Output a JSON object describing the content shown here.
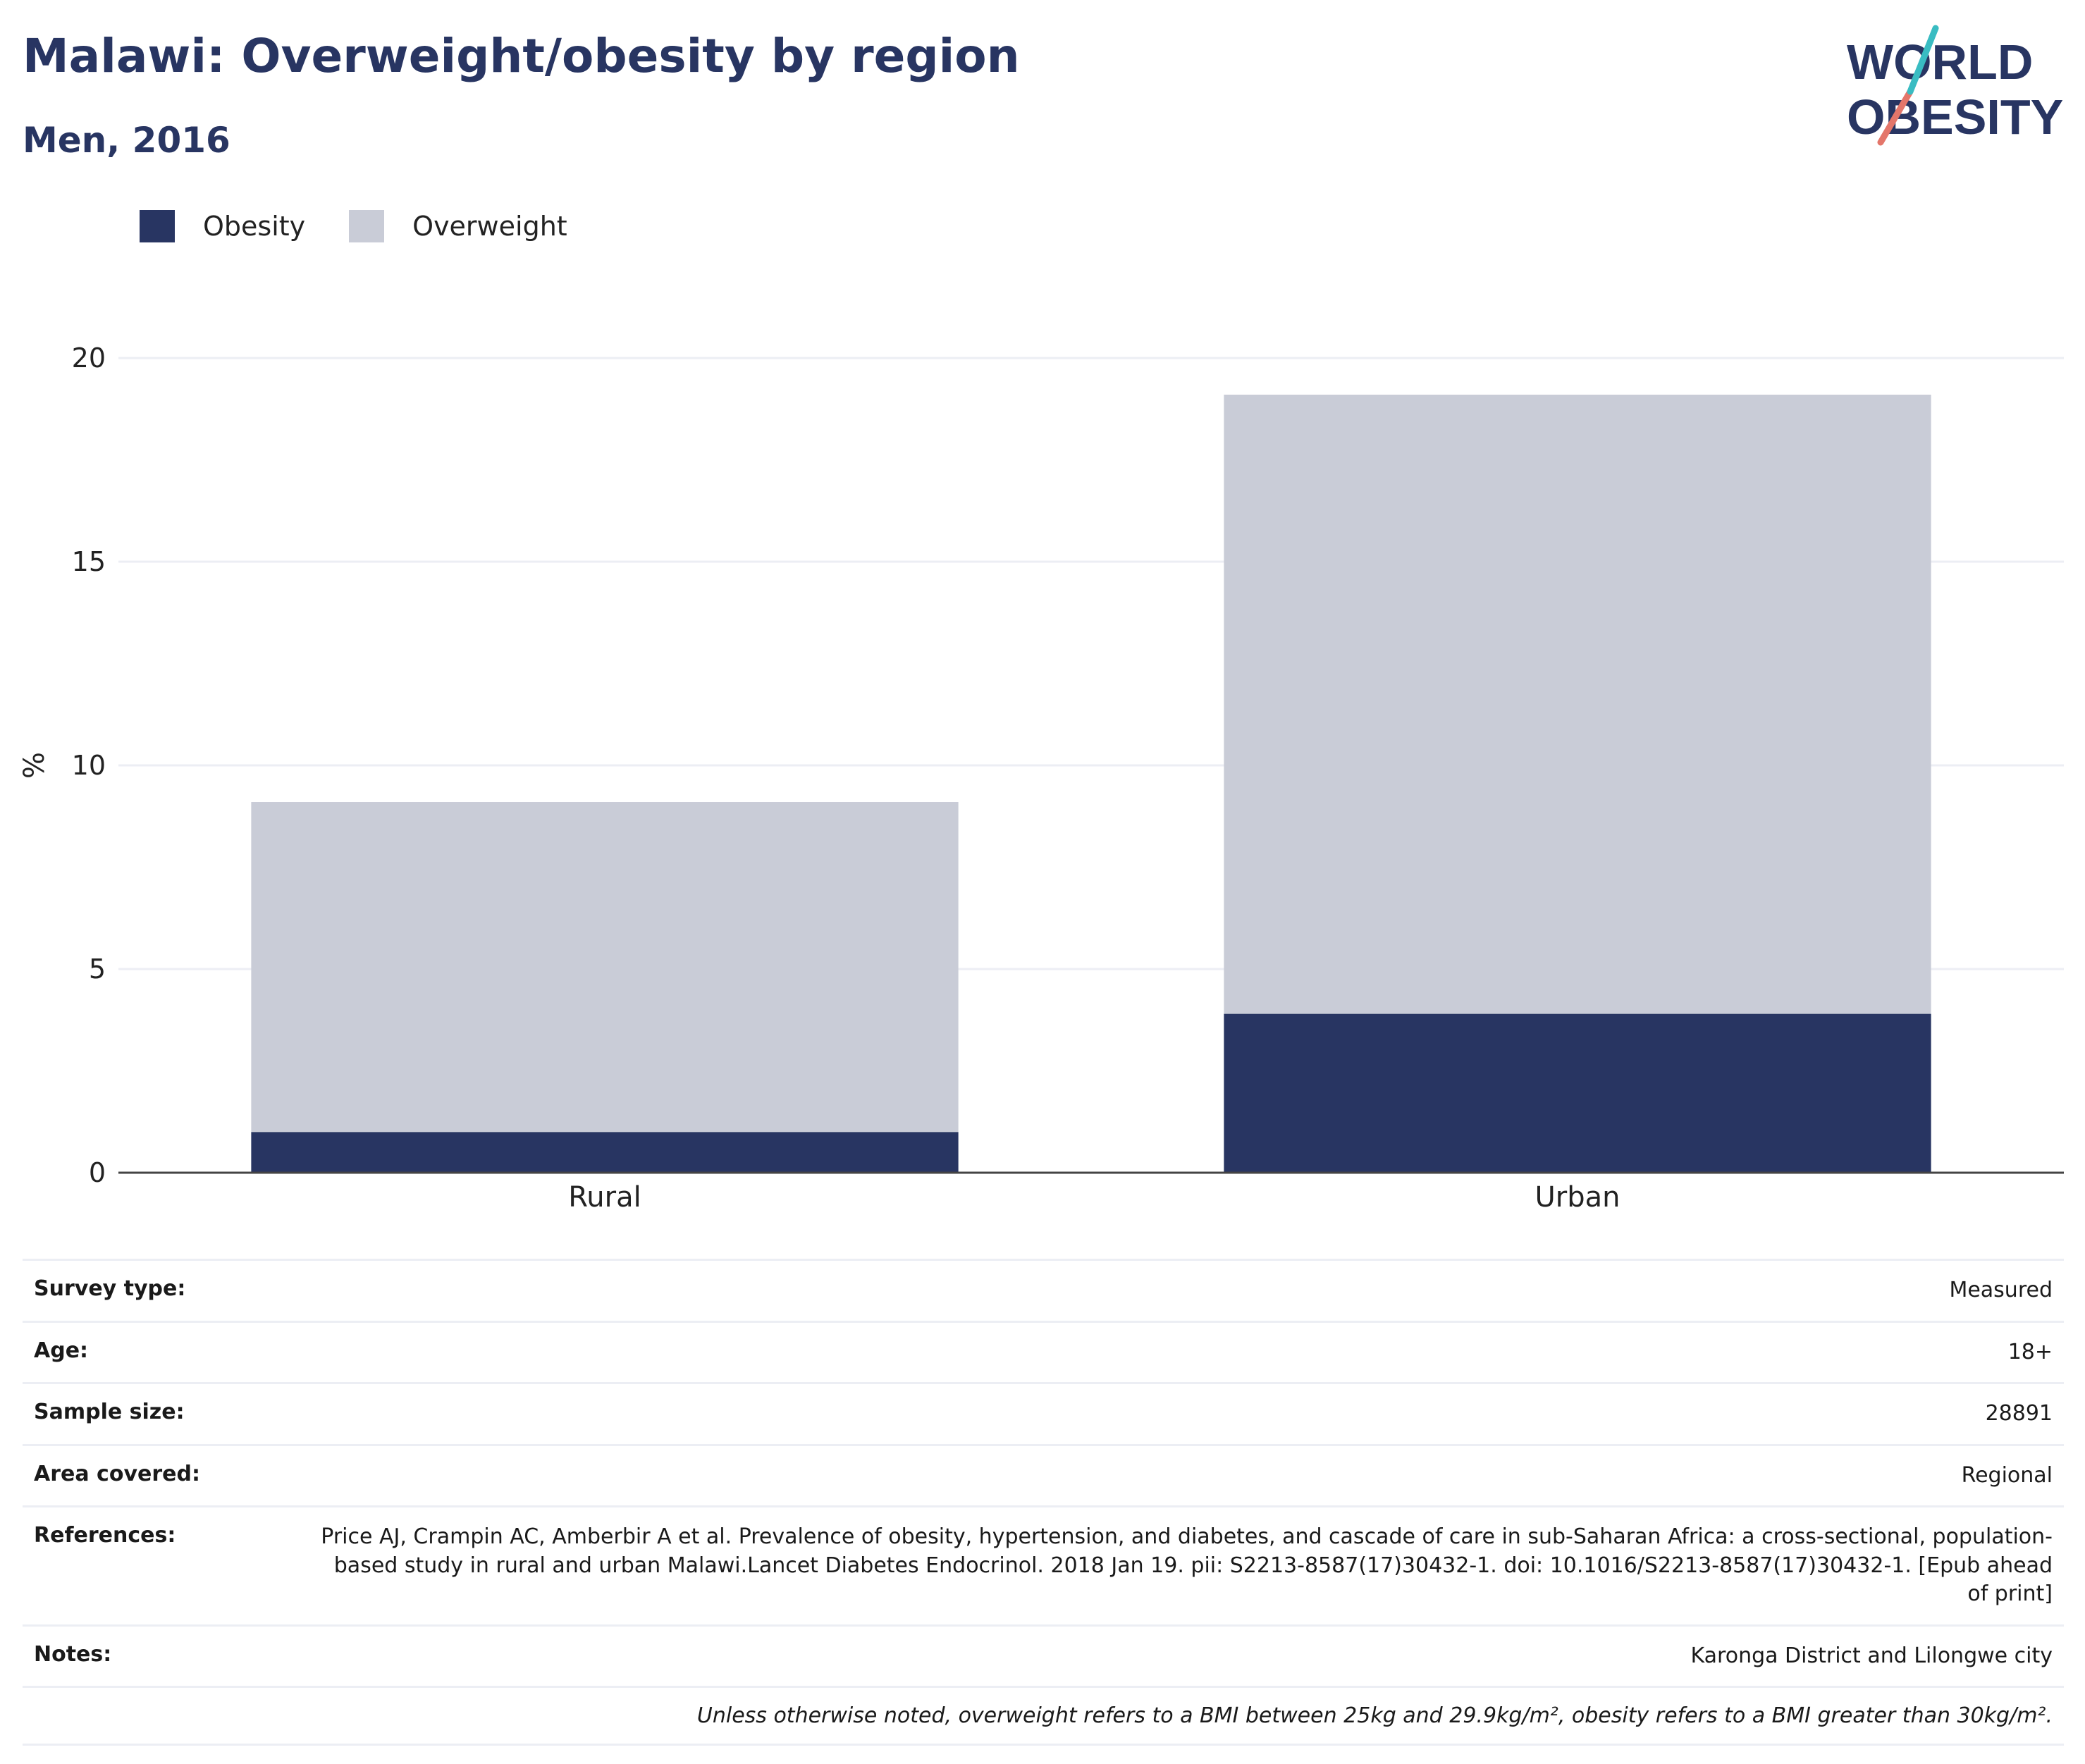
{
  "header": {
    "title": "Malawi: Overweight/obesity by region",
    "subtitle": "Men, 2016"
  },
  "logo": {
    "line1": "WORLD",
    "line2": "OBESITY"
  },
  "legend": [
    {
      "label": "Obesity",
      "color": "#283562"
    },
    {
      "label": "Overweight",
      "color": "#c9ccd7"
    }
  ],
  "chart_data": {
    "type": "bar",
    "stacked": true,
    "categories": [
      "Rural",
      "Urban"
    ],
    "series": [
      {
        "name": "Obesity",
        "color": "#283562",
        "values": [
          1.0,
          3.9
        ]
      },
      {
        "name": "Overweight",
        "color": "#c9ccd7",
        "values": [
          8.1,
          15.2
        ]
      }
    ],
    "ylabel": "%",
    "ylim": [
      0,
      20
    ],
    "yticks": [
      0,
      5,
      10,
      15,
      20
    ],
    "grid": true
  },
  "info": [
    {
      "label": "Survey type:",
      "value": "Measured"
    },
    {
      "label": "Age:",
      "value": "18+"
    },
    {
      "label": "Sample size:",
      "value": "28891"
    },
    {
      "label": "Area covered:",
      "value": "Regional"
    },
    {
      "label": "References:",
      "value": "Price AJ, Crampin AC, Amberbir A et al. Prevalence of obesity, hypertension, and diabetes, and cascade of care in sub-Saharan Africa: a cross-sectional, population-based study in rural and urban Malawi.Lancet Diabetes Endocrinol. 2018 Jan 19. pii: S2213-8587(17)30432-1. doi: 10.1016/S2213-8587(17)30432-1. [Epub ahead of print]"
    },
    {
      "label": "Notes:",
      "value": "Karonga District and Lilongwe city"
    }
  ],
  "footnote": "Unless otherwise noted, overweight refers to a BMI between 25kg and 29.9kg/m², obesity refers to a BMI greater than 30kg/m²."
}
